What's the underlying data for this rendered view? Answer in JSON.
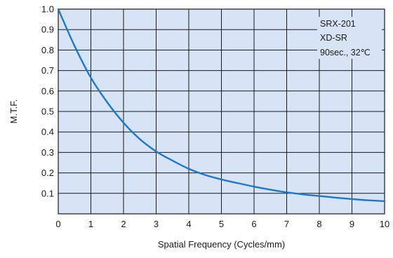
{
  "chart_data": {
    "type": "line",
    "title": "",
    "xlabel": "Spatial Frequency (Cycles/mm)",
    "ylabel": "M.T.F.",
    "xlim": [
      0,
      10
    ],
    "ylim": [
      0,
      1.0
    ],
    "x_ticks": [
      "0",
      "1",
      "2",
      "3",
      "4",
      "5",
      "6",
      "7",
      "8",
      "9",
      "10"
    ],
    "y_ticks": [
      "0.1",
      "0.2",
      "0.3",
      "0.4",
      "0.5",
      "0.6",
      "0.7",
      "0.8",
      "0.9",
      "1.0"
    ],
    "grid": true,
    "annotation": [
      "SRX-201",
      "XD-SR",
      "90sec., 32℃"
    ],
    "annotation_position": "top-right",
    "plot_background": "#d6e4f5",
    "line_color": "#1f78c8",
    "series": [
      {
        "x": [
          0,
          0.5,
          1,
          1.5,
          2,
          2.5,
          3,
          3.5,
          4,
          4.5,
          5,
          5.5,
          6,
          6.5,
          7,
          7.5,
          8,
          8.5,
          9,
          9.5,
          10
        ],
        "values": [
          1.0,
          0.82,
          0.665,
          0.545,
          0.445,
          0.365,
          0.305,
          0.26,
          0.22,
          0.19,
          0.168,
          0.15,
          0.133,
          0.118,
          0.105,
          0.095,
          0.087,
          0.079,
          0.072,
          0.066,
          0.062
        ]
      }
    ]
  }
}
